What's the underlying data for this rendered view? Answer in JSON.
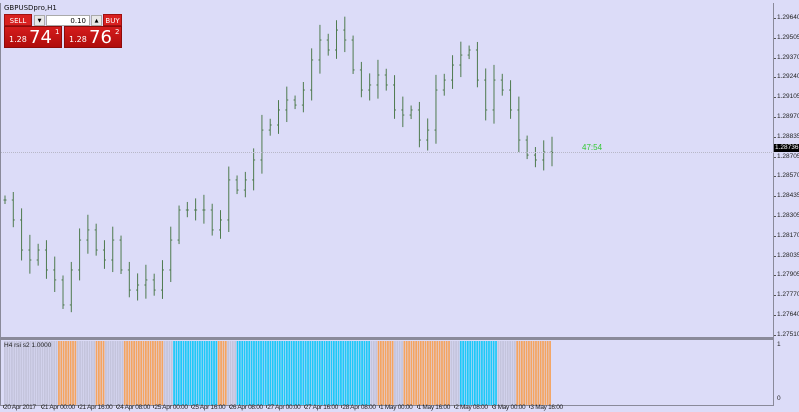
{
  "window": {
    "title": "GBPUSDpro,H1"
  },
  "trade_panel": {
    "sell_label": "SELL",
    "buy_label": "BUY",
    "lot": "0.10",
    "sell_prefix": "1.28",
    "sell_big": "74",
    "sell_pip": "1",
    "buy_prefix": "1.28",
    "buy_big": "76",
    "buy_pip": "2",
    "sell_color": "#d82020",
    "buy_color": "#d82020"
  },
  "price_axis": {
    "labels": [
      "1.29640",
      "1.29505",
      "1.29370",
      "1.29240",
      "1.29105",
      "1.28970",
      "1.28835",
      "1.28705",
      "1.28570",
      "1.28435",
      "1.28305",
      "1.28170",
      "1.28035",
      "1.27905",
      "1.27770",
      "1.27640",
      "1.27510"
    ],
    "current_price": "1.28736"
  },
  "countdown": "47:54",
  "time_axis": [
    "20 Apr 2017",
    "21 Apr 00:00",
    "21 Apr 16:00",
    "24 Apr 08:00",
    "25 Apr 00:00",
    "25 Apr 16:00",
    "26 Apr 08:00",
    "27 Apr 00:00",
    "27 Apr 16:00",
    "28 Apr 08:00",
    "1 May 00:00",
    "1 May 16:00",
    "2 May 08:00",
    "3 May 00:00",
    "3 May 16:00"
  ],
  "indicator": {
    "label": "H4 rsi s2 1.0000",
    "scale_max": "1",
    "scale_min": "0",
    "colors": {
      "neutral": "#c4c4dc",
      "low": "#f4a460",
      "high": "#1ec8f8"
    },
    "segments": [
      {
        "state": "neutral",
        "bars": 23
      },
      {
        "state": "low",
        "bars": 8
      },
      {
        "state": "neutral",
        "bars": 8
      },
      {
        "state": "low",
        "bars": 4
      },
      {
        "state": "neutral",
        "bars": 8
      },
      {
        "state": "low",
        "bars": 17
      },
      {
        "state": "neutral",
        "bars": 4
      },
      {
        "state": "high",
        "bars": 19
      },
      {
        "state": "low",
        "bars": 4
      },
      {
        "state": "neutral",
        "bars": 4
      },
      {
        "state": "high",
        "bars": 57
      },
      {
        "state": "neutral",
        "bars": 3
      },
      {
        "state": "low",
        "bars": 7
      },
      {
        "state": "neutral",
        "bars": 4
      },
      {
        "state": "low",
        "bars": 20
      },
      {
        "state": "neutral",
        "bars": 4
      },
      {
        "state": "high",
        "bars": 16
      },
      {
        "state": "neutral",
        "bars": 8
      },
      {
        "state": "low",
        "bars": 15
      }
    ]
  },
  "chart_data": {
    "type": "ohlc",
    "symbol": "GBPUSDpro",
    "timeframe": "H1",
    "ylim": [
      1.2745,
      1.2971
    ],
    "bar_color": "#4e7a4e",
    "closes": [
      1.28417,
      1.28283,
      1.28081,
      1.28014,
      1.28081,
      1.27947,
      1.2788,
      1.27712,
      1.27947,
      1.28148,
      1.28216,
      1.28081,
      1.28014,
      1.28148,
      1.27947,
      1.27812,
      1.27846,
      1.2788,
      1.27812,
      1.27947,
      1.28148,
      1.2835,
      1.2835,
      1.2835,
      1.2835,
      1.28216,
      1.28283,
      1.28552,
      1.28484,
      1.28552,
      1.28686,
      1.28887,
      1.28921,
      1.29022,
      1.29089,
      1.29055,
      1.29156,
      1.29358,
      1.29492,
      1.29425,
      1.29559,
      1.29492,
      1.29291,
      1.29156,
      1.2919,
      1.29257,
      1.2919,
      1.29022,
      1.28988,
      1.29022,
      1.2882,
      1.28887,
      1.29156,
      1.29223,
      1.29324,
      1.29391,
      1.29425,
      1.29223,
      1.29022,
      1.29223,
      1.29156,
      1.29022,
      1.2882,
      1.28719,
      1.28686,
      1.2874,
      1.28736
    ]
  }
}
